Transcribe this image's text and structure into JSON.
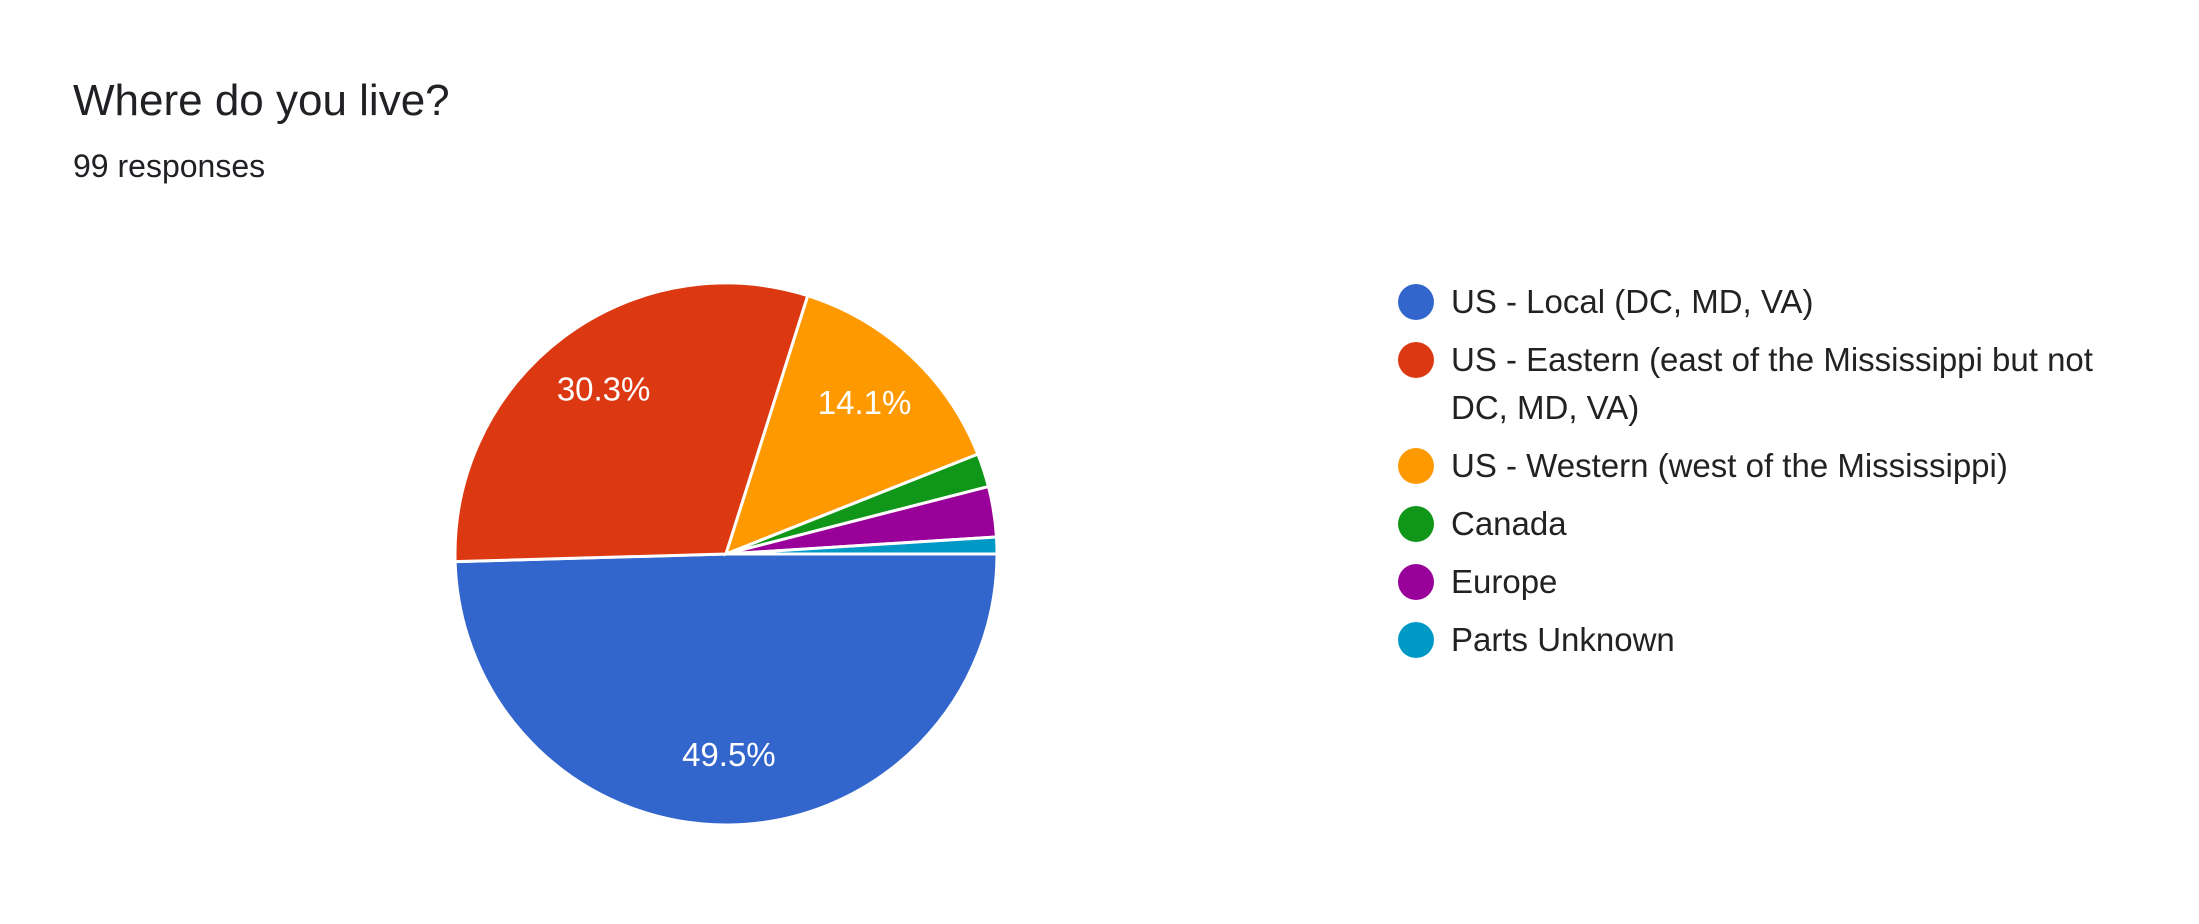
{
  "chart_data": {
    "type": "pie",
    "title": "Where do you live?",
    "subtitle": "99 responses",
    "categories": [
      "US - Local (DC, MD, VA)",
      "US - Eastern (east of the Mississippi but not DC, MD, VA)",
      "US - Western (west of the Mississippi)",
      "Canada",
      "Europe",
      "Parts Unknown"
    ],
    "values": [
      49.5,
      30.3,
      14.1,
      2.0,
      3.0,
      1.0
    ],
    "value_labels": [
      "49.5%",
      "30.3%",
      "14.1%",
      null,
      null,
      null
    ],
    "colors": [
      "#3366cc",
      "#dc3912",
      "#ff9900",
      "#109618",
      "#990099",
      "#0099c6"
    ],
    "legend": "right"
  }
}
